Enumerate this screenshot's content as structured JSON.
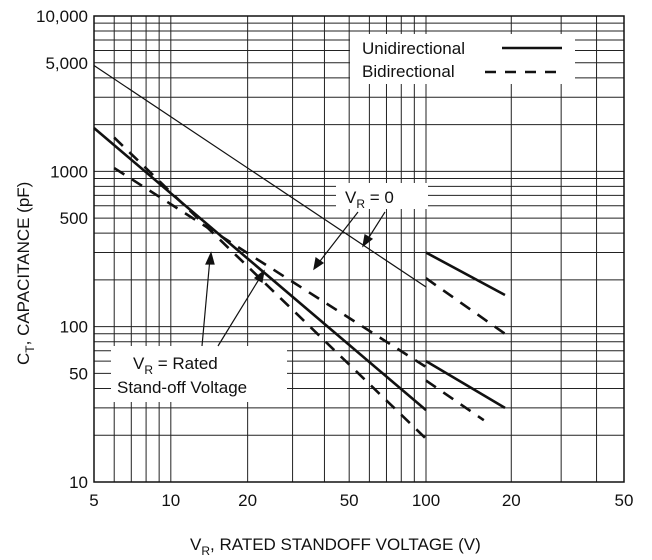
{
  "chart_data": {
    "type": "line",
    "title": "",
    "xlabel": "V_R, RATED STANDOFF VOLTAGE (V)",
    "xlabel_parts": {
      "main": "V",
      "sub": "R",
      "rest": ", RATED STANDOFF VOLTAGE (V)"
    },
    "ylabel": "C_T, CAPACITANCE (pF)",
    "ylabel_parts": {
      "main": "C",
      "sub": "T",
      "rest": ", CAPACITANCE (pF)"
    },
    "y_scale": "log",
    "ylim": [
      10,
      10000
    ],
    "y_ticks": [
      {
        "label": "10,000",
        "value": 10000
      },
      {
        "label": "5,000",
        "value": 5000
      },
      {
        "label": "1000",
        "value": 1000
      },
      {
        "label": "500",
        "value": 500
      },
      {
        "label": "100",
        "value": 100
      },
      {
        "label": "50",
        "value": 50
      },
      {
        "label": "10",
        "value": 10
      }
    ],
    "x_scale": "log (two decade segments)",
    "x_ticks": [
      "5",
      "10",
      "20",
      "50",
      "100",
      "20",
      "50"
    ],
    "grid": true,
    "legend": {
      "position": "top-right",
      "entries": [
        {
          "label": "Unidirectional",
          "style": "solid"
        },
        {
          "label": "Bidirectional",
          "style": "dashed"
        }
      ]
    },
    "annotations": [
      {
        "text": "V_R = 0",
        "parts": {
          "main": "V",
          "sub": "R",
          "rest": " = 0"
        }
      },
      {
        "text": "V_R = Rated",
        "parts": {
          "main": "V",
          "sub": "R",
          "rest": " = Rated"
        }
      },
      {
        "text": "Stand-off Voltage"
      }
    ],
    "series": [
      {
        "style": "solid",
        "weight": "thin",
        "x": [
          5,
          100
        ],
        "y": [
          4800,
          180
        ]
      },
      {
        "style": "solid",
        "weight": "bold",
        "x": [
          5,
          100
        ],
        "y": [
          1900,
          29
        ]
      },
      {
        "style": "dashed",
        "weight": "bold",
        "x": [
          6,
          100
        ],
        "y": [
          1650,
          19
        ]
      },
      {
        "style": "dashed",
        "weight": "bold",
        "x": [
          6,
          100
        ],
        "y": [
          1050,
          55
        ]
      },
      {
        "style": "solid",
        "weight": "bold",
        "x": [
          100,
          190
        ],
        "y": [
          300,
          160
        ]
      },
      {
        "style": "dashed",
        "weight": "bold",
        "x": [
          100,
          190
        ],
        "y": [
          205,
          90
        ]
      },
      {
        "style": "solid",
        "weight": "bold",
        "x": [
          100,
          190
        ],
        "y": [
          60,
          30
        ]
      },
      {
        "style": "dashed",
        "weight": "bold",
        "x": [
          100,
          160
        ],
        "y": [
          45,
          25
        ]
      }
    ]
  }
}
